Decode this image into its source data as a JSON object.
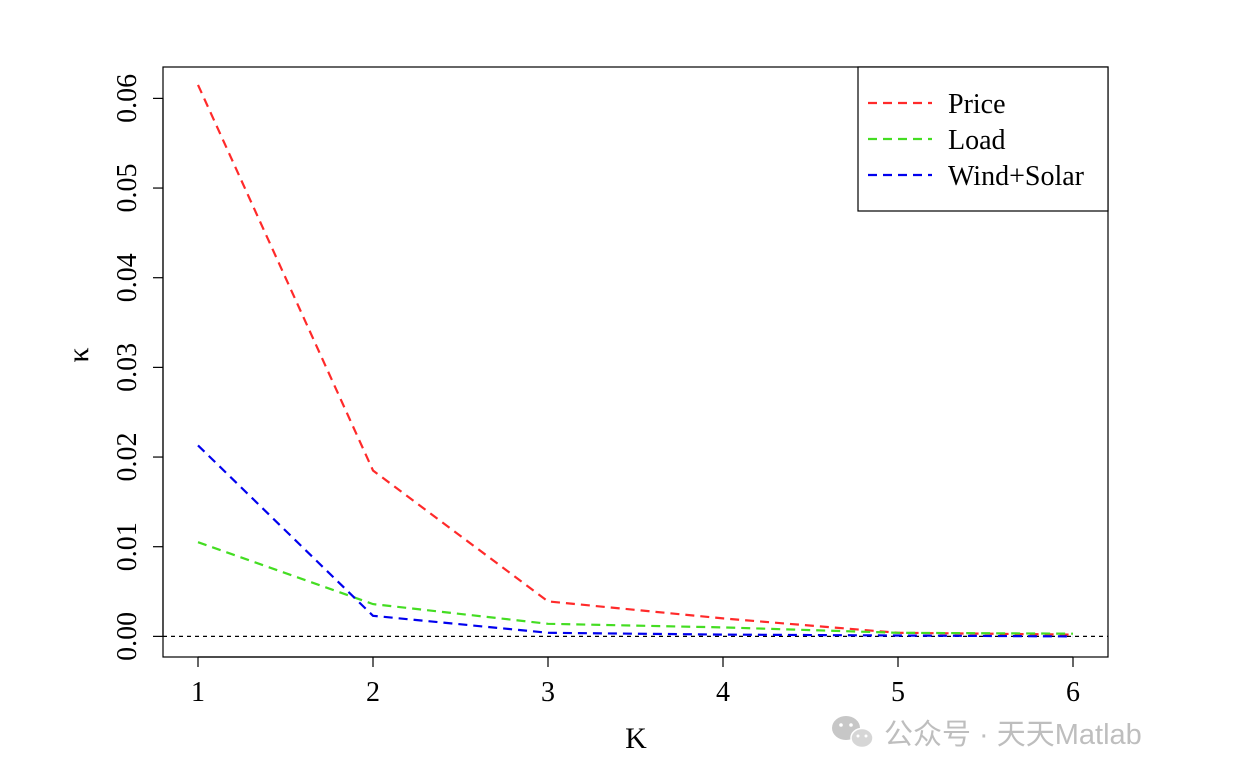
{
  "chart_data": {
    "type": "line",
    "title": "",
    "xlabel": "K",
    "ylabel": "κ",
    "x": [
      1,
      2,
      3,
      4,
      5,
      6
    ],
    "xticks": [
      "1",
      "2",
      "3",
      "4",
      "5",
      "6"
    ],
    "yticks": [
      "0.00",
      "0.01",
      "0.02",
      "0.03",
      "0.04",
      "0.05",
      "0.06"
    ],
    "xlim": [
      0.8,
      6.2
    ],
    "ylim": [
      -0.0023,
      0.0635
    ],
    "hline": 0,
    "grid": false,
    "legend_position": "top-right",
    "series": [
      {
        "name": "Price",
        "color": "#ff2a2a",
        "values": [
          0.0615,
          0.0185,
          0.0039,
          0.002,
          0.0004,
          0.0002
        ]
      },
      {
        "name": "Load",
        "color": "#44dd22",
        "values": [
          0.0105,
          0.0036,
          0.0014,
          0.001,
          0.0004,
          0.0003
        ]
      },
      {
        "name": "Wind+Solar",
        "color": "#0000ee",
        "values": [
          0.0213,
          0.0023,
          0.0004,
          0.0002,
          0.0001,
          0.0
        ]
      }
    ]
  },
  "watermark": {
    "text": "公众号 · 天天Matlab",
    "icon": "wechat-icon"
  }
}
